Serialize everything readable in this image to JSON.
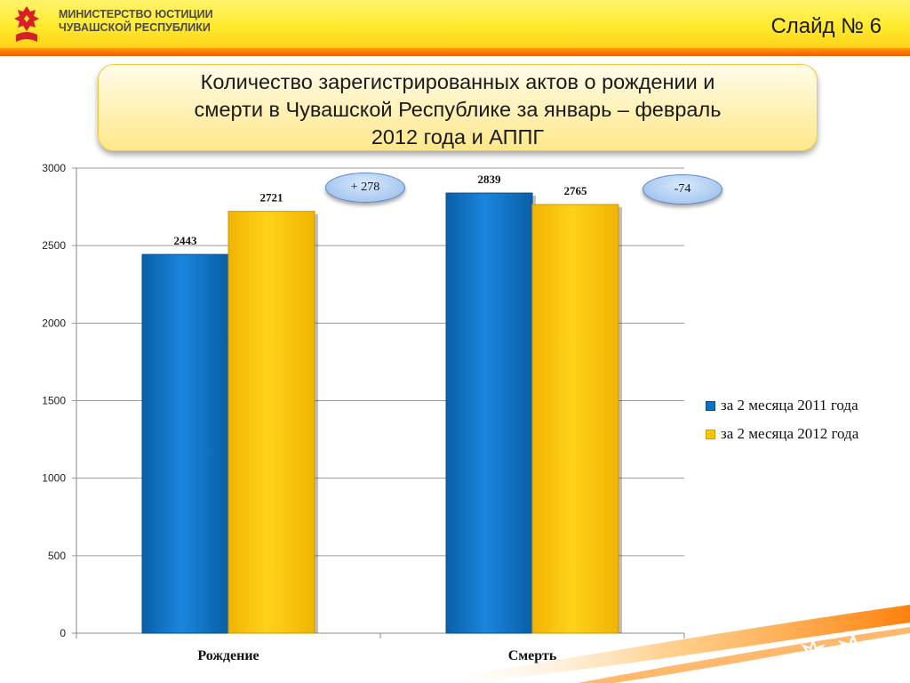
{
  "header": {
    "ministry_line1": "МИНИСТЕРСТВО ЮСТИЦИИ",
    "ministry_line2": "ЧУВАШСКОЙ РЕСПУБЛИКИ",
    "slide_number": "Слайд № 6"
  },
  "title": {
    "line1": "Количество зарегистрированных актов о рождении и",
    "line2": "смерти в  Чувашской Республике за январь – февраль",
    "line3": "2012 года и АППГ"
  },
  "badges": [
    {
      "text": "+ 278"
    },
    {
      "text": "-74"
    }
  ],
  "colors": {
    "series_2011": "#0a72c8",
    "series_2012": "#ffc700",
    "header": "#ffe62e",
    "stripe": "#f26b00"
  },
  "chart_data": {
    "type": "bar",
    "categories": [
      "Рождение",
      "Смерть"
    ],
    "series": [
      {
        "name": "за 2 месяца 2011 года",
        "values": [
          2443,
          2839
        ]
      },
      {
        "name": "за 2 месяца 2012 года",
        "values": [
          2721,
          2765
        ]
      }
    ],
    "ylim": [
      0,
      3000
    ],
    "yticks": [
      "0",
      "500",
      "1000",
      "1500",
      "2000",
      "2500",
      "3000"
    ],
    "grid": true,
    "legend_position": "right"
  }
}
